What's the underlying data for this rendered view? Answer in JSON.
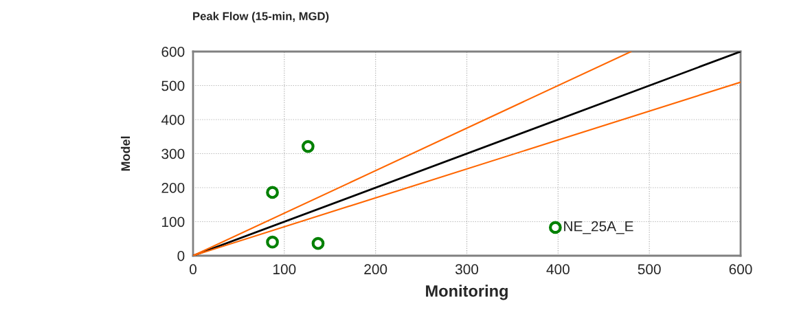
{
  "chart_data": {
    "type": "scatter",
    "title": "Peak Flow (15-min, MGD)",
    "xlabel": "Monitoring",
    "ylabel": "Model",
    "series": [
      {
        "type": "line",
        "color": "#000000",
        "x": [
          0,
          600
        ],
        "values": [
          0,
          600
        ],
        "marker": "none"
      },
      {
        "type": "line",
        "color": "#ff6600",
        "x": [
          0,
          480
        ],
        "values": [
          0,
          600
        ],
        "marker": "none"
      },
      {
        "type": "line",
        "color": "#ff6600",
        "x": [
          0,
          600
        ],
        "values": [
          0,
          510
        ],
        "marker": "none"
      },
      {
        "color": "#008000",
        "x": [
          87,
          126,
          87,
          137,
          397
        ],
        "values": [
          186,
          321,
          40,
          36,
          83
        ],
        "marker": "circle"
      }
    ],
    "annotations": [
      {
        "text": "NE_25A_E",
        "x": 397,
        "y": 83
      }
    ],
    "xlim": [
      0,
      600
    ],
    "ylim": [
      0,
      600
    ],
    "xticks": [
      0,
      100,
      200,
      300,
      400,
      500,
      600
    ],
    "yticks": [
      0,
      100,
      200,
      300,
      400,
      500,
      600
    ],
    "grid": true,
    "legend": false
  }
}
